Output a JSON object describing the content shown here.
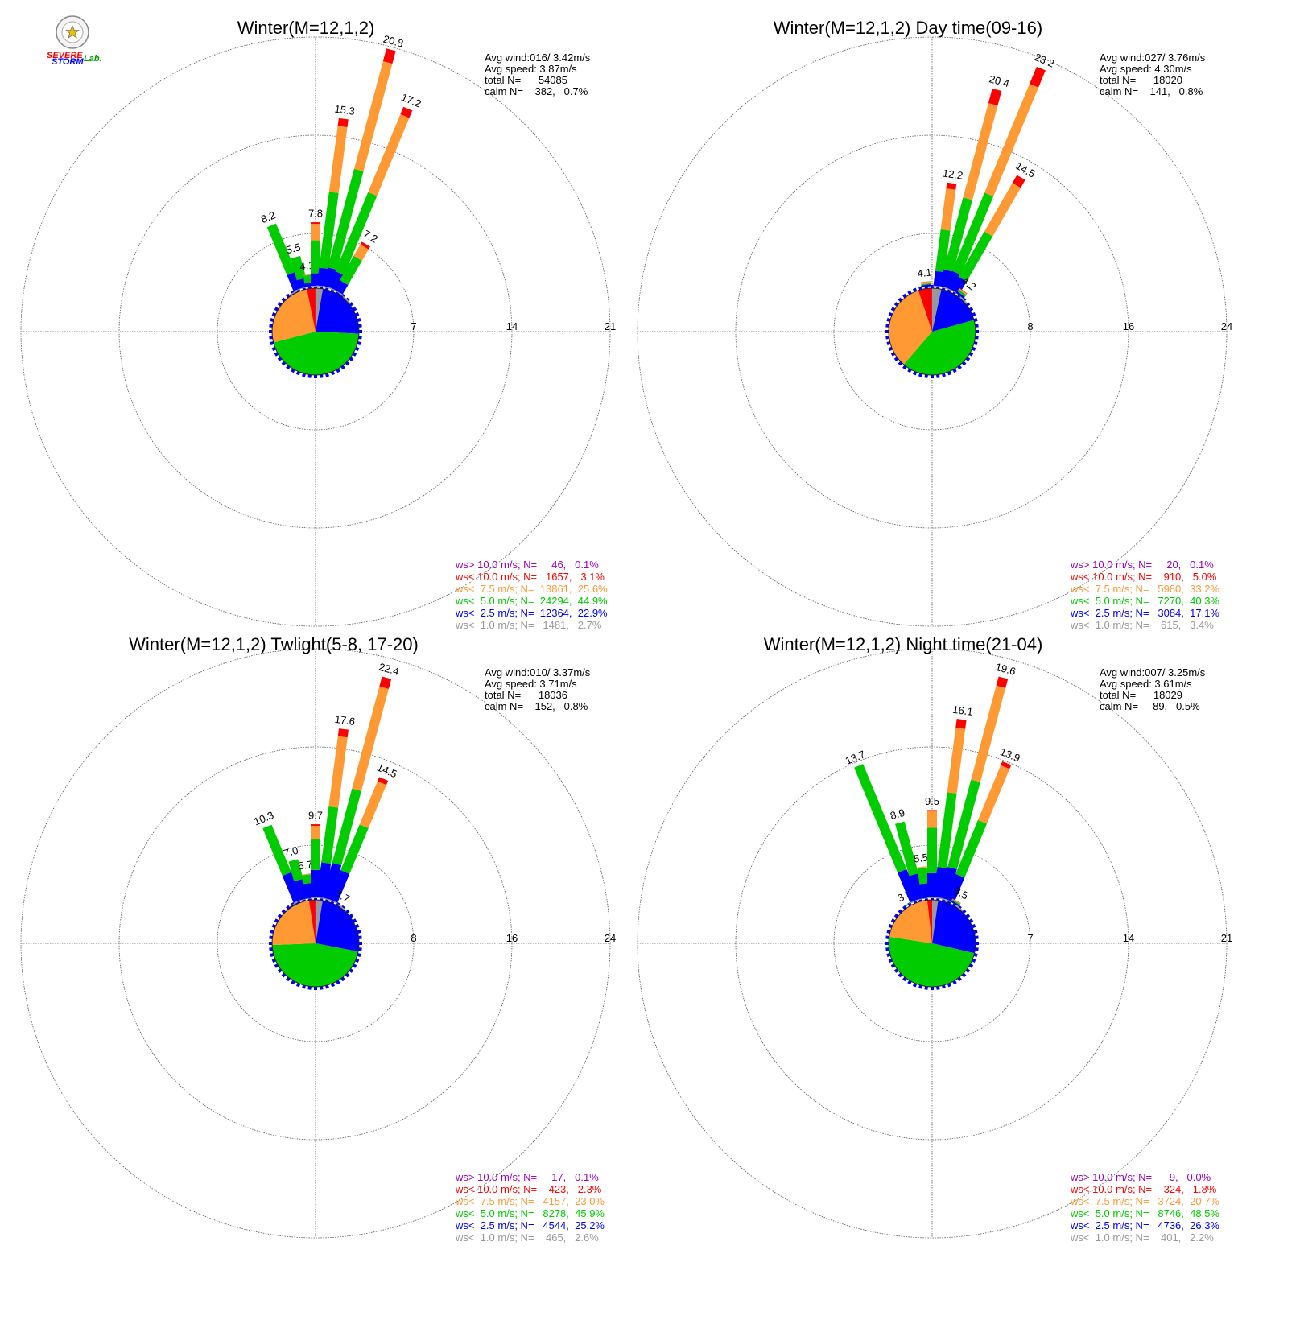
{
  "logo": {
    "text_a": "SEVERE",
    "text_b": "STORM",
    "text_c": "Lab."
  },
  "legend_colors": [
    "#9900cc",
    "#ff0000",
    "#ff9933",
    "#00cc00",
    "#0000ff",
    "#999999"
  ],
  "chart_data": [
    {
      "type": "windrose",
      "title": "Winter(M=12,1,2)",
      "ring_max": 21,
      "ring_step": 7,
      "ring_labels": [
        "7",
        "14",
        "21"
      ],
      "info": [
        "Avg wind:016/ 3.42m/s",
        "Avg speed: 3.87m/s",
        "total N=      54085",
        "calm N=    382,   0.7%"
      ],
      "legend": [
        "ws> 10.0 m/s; N=     46,   0.1%",
        "ws< 10.0 m/s; N=   1657,   3.1%",
        "ws<  7.5 m/s; N=  13861,  25.6%",
        "ws<  5.0 m/s; N=  24294,  44.9%",
        "ws<  2.5 m/s; N=  12364,  22.9%",
        "ws<  1.0 m/s; N=   1481,   2.7%"
      ],
      "bars": [
        {
          "dir": 337.5,
          "total": 8.2,
          "label": "8.2",
          "segments": [
            0.1,
            2.0,
            6.1,
            0.0,
            0.0
          ]
        },
        {
          "dir": 345,
          "total": 5.5,
          "label": "5.5",
          "segments": [
            0.1,
            1.5,
            3.9,
            0.0,
            0.0
          ]
        },
        {
          "dir": 352.5,
          "total": 4.1,
          "label": "4.1",
          "segments": [
            0.1,
            1.2,
            2.6,
            0.2,
            0.0
          ]
        },
        {
          "dir": 0,
          "total": 7.8,
          "label": "7.8",
          "segments": [
            0.1,
            1.5,
            4.0,
            2.0,
            0.2
          ]
        },
        {
          "dir": 7.5,
          "total": 15.3,
          "label": "15.3",
          "segments": [
            0.1,
            1.6,
            6.9,
            6.0,
            0.7
          ]
        },
        {
          "dir": 15,
          "total": 20.8,
          "label": "20.8",
          "segments": [
            0.1,
            1.6,
            8.6,
            9.4,
            1.1
          ]
        },
        {
          "dir": 22.5,
          "total": 17.2,
          "label": "17.2",
          "segments": [
            0.1,
            1.5,
            7.5,
            7.4,
            0.7
          ]
        },
        {
          "dir": 30,
          "total": 7.2,
          "label": "7.2",
          "segments": [
            0.1,
            1.4,
            3.6,
            1.7,
            0.4
          ]
        },
        {
          "dir": 37.5,
          "total": 2.2,
          "label": "",
          "segments": [
            0.1,
            1.0,
            0.8,
            0.3,
            0.0
          ]
        },
        {
          "dir": 45,
          "total": 1.4,
          "label": "",
          "segments": [
            0.1,
            0.8,
            0.4,
            0.1,
            0.0
          ]
        },
        {
          "dir": 330,
          "total": 1.8,
          "label": "",
          "segments": [
            0.1,
            1.4,
            0.3,
            0.0,
            0.0
          ]
        }
      ],
      "pie": [
        2.7,
        22.9,
        44.9,
        25.6,
        3.1,
        0.1
      ]
    },
    {
      "type": "windrose",
      "title": "Winter(M=12,1,2) Day time(09-16)",
      "ring_max": 24,
      "ring_step": 8,
      "ring_labels": [
        "8",
        "16",
        "24"
      ],
      "info": [
        "Avg wind:027/ 3.76m/s",
        "Avg speed: 4.30m/s",
        "total N=      18020",
        "calm N=    141,   0.8%"
      ],
      "legend": [
        "ws> 10.0 m/s; N=     20,   0.1%",
        "ws< 10.0 m/s; N=    910,   5.0%",
        "ws<  7.5 m/s; N=   5980,  33.2%",
        "ws<  5.0 m/s; N=   7270,  40.3%",
        "ws<  2.5 m/s; N=   3084,  17.1%",
        "ws<  1.0 m/s; N=    615,   3.4%"
      ],
      "bars": [
        {
          "dir": 352.5,
          "total": 4.1,
          "label": "4.1",
          "segments": [
            0.1,
            1.6,
            0.8,
            1.4,
            0.2
          ]
        },
        {
          "dir": 7.5,
          "total": 12.2,
          "label": "12.2",
          "segments": [
            0.1,
            1.7,
            4.9,
            4.8,
            0.7
          ]
        },
        {
          "dir": 15,
          "total": 20.4,
          "label": "20.4",
          "segments": [
            0.1,
            1.7,
            7.4,
            9.7,
            1.5
          ]
        },
        {
          "dir": 22.5,
          "total": 23.2,
          "label": "23.2",
          "segments": [
            0.1,
            1.7,
            8.2,
            11.4,
            1.8
          ]
        },
        {
          "dir": 30,
          "total": 14.5,
          "label": "14.5",
          "segments": [
            0.1,
            1.6,
            5.7,
            6.1,
            1.0
          ]
        },
        {
          "dir": 37.5,
          "total": 4.2,
          "label": "4.2",
          "segments": [
            0.1,
            1.4,
            1.5,
            0.9,
            0.3
          ]
        },
        {
          "dir": 45,
          "total": 1.4,
          "label": "",
          "segments": [
            0.1,
            0.9,
            0.3,
            0.1,
            0.0
          ]
        }
      ],
      "pie": [
        3.4,
        17.1,
        40.3,
        33.2,
        5.0,
        0.1
      ]
    },
    {
      "type": "windrose",
      "title": "Winter(M=12,1,2) Twlight(5-8, 17-20)",
      "ring_max": 24,
      "ring_step": 8,
      "ring_labels": [
        "8",
        "16",
        "24"
      ],
      "info": [
        "Avg wind:010/ 3.37m/s",
        "Avg speed: 3.71m/s",
        "total N=      18036",
        "calm N=    152,   0.8%"
      ],
      "legend": [
        "ws> 10.0 m/s; N=     17,   0.1%",
        "ws< 10.0 m/s; N=    423,   2.3%",
        "ws<  7.5 m/s; N=   4157,  23.0%",
        "ws<  5.0 m/s; N=   8278,  45.9%",
        "ws<  2.5 m/s; N=   4544,  25.2%",
        "ws<  1.0 m/s; N=    465,   2.6%"
      ],
      "bars": [
        {
          "dir": 330,
          "total": 2.4,
          "label": "2.4",
          "segments": [
            0.1,
            1.8,
            0.5,
            0.0,
            0.0
          ]
        },
        {
          "dir": 337.5,
          "total": 10.3,
          "label": "10.3",
          "segments": [
            0.1,
            3.7,
            6.5,
            0.0,
            0.0
          ]
        },
        {
          "dir": 345,
          "total": 7.0,
          "label": "7.0",
          "segments": [
            0.1,
            3.4,
            3.5,
            0.0,
            0.0
          ]
        },
        {
          "dir": 352.5,
          "total": 5.7,
          "label": "5.7",
          "segments": [
            0.1,
            3.4,
            2.0,
            0.2,
            0.0
          ]
        },
        {
          "dir": 0,
          "total": 9.7,
          "label": "9.7",
          "segments": [
            0.1,
            3.6,
            4.0,
            1.8,
            0.2
          ]
        },
        {
          "dir": 7.5,
          "total": 17.6,
          "label": "17.6",
          "segments": [
            0.1,
            3.6,
            5.8,
            7.3,
            0.8
          ]
        },
        {
          "dir": 15,
          "total": 22.4,
          "label": "22.4",
          "segments": [
            0.1,
            3.5,
            7.5,
            10.3,
            1.0
          ]
        },
        {
          "dir": 22.5,
          "total": 14.5,
          "label": "14.5",
          "segments": [
            0.1,
            3.4,
            5.4,
            5.1,
            0.5
          ]
        },
        {
          "dir": 30,
          "total": 3.7,
          "label": "3.7",
          "segments": [
            0.1,
            1.8,
            1.0,
            0.5,
            0.3
          ]
        },
        {
          "dir": 37.5,
          "total": 1.6,
          "label": "",
          "segments": [
            0.1,
            1.0,
            0.4,
            0.1,
            0.0
          ]
        }
      ],
      "pie": [
        2.6,
        25.2,
        45.9,
        23.0,
        2.3,
        0.1
      ]
    },
    {
      "type": "windrose",
      "title": "Winter(M=12,1,2) Night time(21-04)",
      "ring_max": 21,
      "ring_step": 7,
      "ring_labels": [
        "7",
        "14",
        "21"
      ],
      "info": [
        "Avg wind:007/ 3.25m/s",
        "Avg speed: 3.61m/s",
        "total N=      18029",
        "calm N=     89,   0.5%"
      ],
      "legend": [
        "ws> 10.0 m/s; N=      9,   0.0%",
        "ws< 10.0 m/s; N=    324,   1.8%",
        "ws<  7.5 m/s; N=   3724,  20.7%",
        "ws<  5.0 m/s; N=   8746,  48.5%",
        "ws<  2.5 m/s; N=   4736,  26.3%",
        "ws<  1.0 m/s; N=    401,   2.2%"
      ],
      "bars": [
        {
          "dir": 330,
          "total": 3.3,
          "label": "3.3",
          "segments": [
            0.1,
            1.7,
            1.5,
            0.0,
            0.0
          ]
        },
        {
          "dir": 337.5,
          "total": 13.7,
          "label": "13.7",
          "segments": [
            0.1,
            3.0,
            10.6,
            0.0,
            0.0
          ]
        },
        {
          "dir": 345,
          "total": 8.9,
          "label": "8.9",
          "segments": [
            0.1,
            2.8,
            6.0,
            0.0,
            0.0
          ]
        },
        {
          "dir": 352.5,
          "total": 5.5,
          "label": "5.5",
          "segments": [
            0.1,
            2.5,
            2.7,
            0.2,
            0.0
          ]
        },
        {
          "dir": 0,
          "total": 9.5,
          "label": "9.5",
          "segments": [
            0.1,
            2.6,
            4.9,
            1.8,
            0.1
          ]
        },
        {
          "dir": 7.5,
          "total": 16.1,
          "label": "16.1",
          "segments": [
            0.1,
            2.7,
            6.7,
            5.8,
            0.8
          ]
        },
        {
          "dir": 15,
          "total": 19.6,
          "label": "19.6",
          "segments": [
            0.1,
            2.7,
            7.7,
            8.3,
            0.8
          ]
        },
        {
          "dir": 22.5,
          "total": 13.9,
          "label": "13.9",
          "segments": [
            0.1,
            2.5,
            5.4,
            5.5,
            0.4
          ]
        },
        {
          "dir": 30,
          "total": 3.5,
          "label": "3.5",
          "segments": [
            0.1,
            1.4,
            1.1,
            0.6,
            0.3
          ]
        },
        {
          "dir": 37.5,
          "total": 1.5,
          "label": "",
          "segments": [
            0.1,
            0.9,
            0.4,
            0.1,
            0.0
          ]
        }
      ],
      "pie": [
        2.2,
        26.3,
        48.5,
        20.7,
        1.8,
        0.0
      ]
    }
  ]
}
